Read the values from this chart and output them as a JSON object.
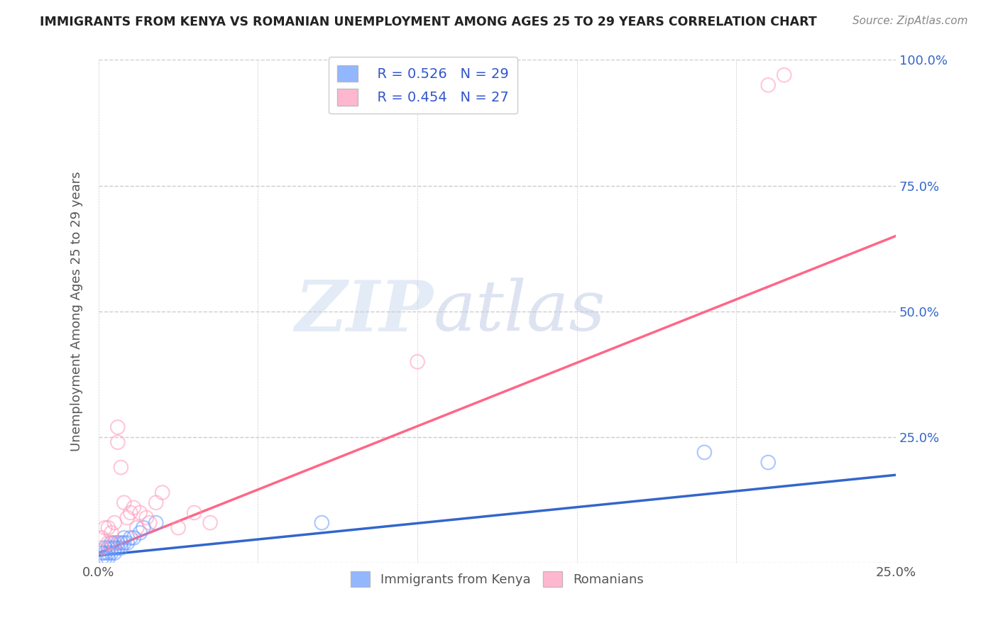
{
  "title": "IMMIGRANTS FROM KENYA VS ROMANIAN UNEMPLOYMENT AMONG AGES 25 TO 29 YEARS CORRELATION CHART",
  "source": "Source: ZipAtlas.com",
  "xlabel": "",
  "ylabel": "Unemployment Among Ages 25 to 29 years",
  "xlim": [
    0.0,
    0.25
  ],
  "ylim": [
    0.0,
    1.0
  ],
  "xticks": [
    0.0,
    0.05,
    0.1,
    0.15,
    0.2,
    0.25
  ],
  "xticklabels": [
    "0.0%",
    "",
    "",
    "",
    "",
    "25.0%"
  ],
  "yticks": [
    0.0,
    0.25,
    0.5,
    0.75,
    1.0
  ],
  "yticklabels": [
    "",
    "25.0%",
    "50.0%",
    "75.0%",
    "100.0%"
  ],
  "blue_color": "#6699FF",
  "pink_color": "#FF99BB",
  "blue_line_color": "#3366CC",
  "pink_line_color": "#FF6688",
  "blue_R": 0.526,
  "blue_N": 29,
  "pink_R": 0.454,
  "pink_N": 27,
  "blue_scatter_x": [
    0.001,
    0.001,
    0.002,
    0.002,
    0.002,
    0.003,
    0.003,
    0.003,
    0.004,
    0.004,
    0.004,
    0.005,
    0.005,
    0.005,
    0.006,
    0.006,
    0.007,
    0.007,
    0.008,
    0.008,
    0.009,
    0.01,
    0.011,
    0.013,
    0.014,
    0.018,
    0.07,
    0.19,
    0.21
  ],
  "blue_scatter_y": [
    0.01,
    0.02,
    0.01,
    0.02,
    0.03,
    0.01,
    0.02,
    0.03,
    0.02,
    0.03,
    0.04,
    0.02,
    0.03,
    0.04,
    0.03,
    0.04,
    0.03,
    0.04,
    0.04,
    0.05,
    0.04,
    0.05,
    0.05,
    0.06,
    0.07,
    0.08,
    0.08,
    0.22,
    0.2
  ],
  "pink_scatter_x": [
    0.001,
    0.001,
    0.002,
    0.003,
    0.003,
    0.004,
    0.005,
    0.005,
    0.006,
    0.006,
    0.007,
    0.008,
    0.009,
    0.01,
    0.011,
    0.012,
    0.013,
    0.015,
    0.016,
    0.018,
    0.02,
    0.025,
    0.03,
    0.035,
    0.1,
    0.21,
    0.215
  ],
  "pink_scatter_y": [
    0.03,
    0.05,
    0.07,
    0.04,
    0.07,
    0.06,
    0.04,
    0.08,
    0.24,
    0.27,
    0.19,
    0.12,
    0.09,
    0.1,
    0.11,
    0.07,
    0.1,
    0.09,
    0.08,
    0.12,
    0.14,
    0.07,
    0.1,
    0.08,
    0.4,
    0.95,
    0.97
  ],
  "blue_trend_x0": 0.0,
  "blue_trend_y0": 0.015,
  "blue_trend_x1": 0.25,
  "blue_trend_y1": 0.175,
  "pink_trend_x0": 0.0,
  "pink_trend_y0": 0.02,
  "pink_trend_x1": 0.25,
  "pink_trend_y1": 0.65,
  "watermark_zip": "ZIP",
  "watermark_atlas": "atlas",
  "background_color": "#FFFFFF",
  "grid_color": "#CCCCCC"
}
